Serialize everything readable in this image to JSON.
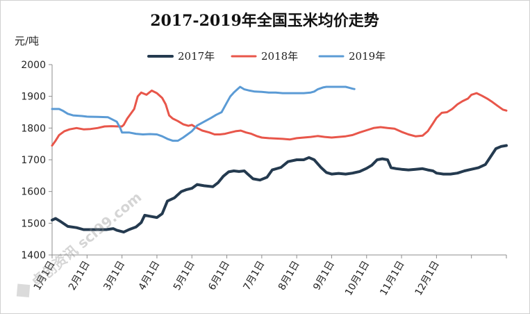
{
  "chart_data": {
    "type": "line",
    "title": "2017-2019年全国玉米均价走势",
    "ylabel": "元/吨",
    "xlabel": "",
    "ylim": [
      1400,
      2000
    ],
    "yticks": [
      1400,
      1500,
      1600,
      1700,
      1800,
      1900,
      2000
    ],
    "grid": false,
    "legend_position": "top",
    "x_tick_labels": [
      "1月1日",
      "2月1日",
      "3月1日",
      "4月1日",
      "5月1日",
      "6月1日",
      "7月1日",
      "8月1日",
      "9月1日",
      "10月1日",
      "11月1日",
      "12月1日"
    ],
    "x_unit": "month (1 = Jan 1)",
    "series": [
      {
        "name": "2017年",
        "color": "#243a4f",
        "points": [
          [
            1.0,
            1510
          ],
          [
            1.1,
            1515
          ],
          [
            1.25,
            1505
          ],
          [
            1.45,
            1490
          ],
          [
            1.7,
            1486
          ],
          [
            1.9,
            1480
          ],
          [
            2.1,
            1480
          ],
          [
            2.35,
            1480
          ],
          [
            2.55,
            1480
          ],
          [
            2.75,
            1483
          ],
          [
            2.85,
            1478
          ],
          [
            3.05,
            1472
          ],
          [
            3.2,
            1480
          ],
          [
            3.4,
            1488
          ],
          [
            3.55,
            1502
          ],
          [
            3.65,
            1525
          ],
          [
            3.8,
            1522
          ],
          [
            4.0,
            1518
          ],
          [
            4.15,
            1530
          ],
          [
            4.3,
            1570
          ],
          [
            4.5,
            1580
          ],
          [
            4.7,
            1600
          ],
          [
            4.85,
            1606
          ],
          [
            5.0,
            1610
          ],
          [
            5.15,
            1622
          ],
          [
            5.35,
            1618
          ],
          [
            5.6,
            1615
          ],
          [
            5.75,
            1628
          ],
          [
            5.9,
            1648
          ],
          [
            6.05,
            1662
          ],
          [
            6.2,
            1665
          ],
          [
            6.35,
            1663
          ],
          [
            6.5,
            1665
          ],
          [
            6.6,
            1655
          ],
          [
            6.75,
            1640
          ],
          [
            6.95,
            1636
          ],
          [
            7.15,
            1645
          ],
          [
            7.3,
            1668
          ],
          [
            7.55,
            1676
          ],
          [
            7.75,
            1694
          ],
          [
            8.0,
            1700
          ],
          [
            8.2,
            1700
          ],
          [
            8.35,
            1707
          ],
          [
            8.5,
            1700
          ],
          [
            8.7,
            1675
          ],
          [
            8.85,
            1660
          ],
          [
            9.0,
            1655
          ],
          [
            9.2,
            1657
          ],
          [
            9.4,
            1655
          ],
          [
            9.6,
            1658
          ],
          [
            9.8,
            1663
          ],
          [
            10.0,
            1673
          ],
          [
            10.15,
            1683
          ],
          [
            10.3,
            1700
          ],
          [
            10.45,
            1703
          ],
          [
            10.6,
            1700
          ],
          [
            10.7,
            1675
          ],
          [
            10.85,
            1672
          ],
          [
            11.0,
            1670
          ],
          [
            11.2,
            1668
          ],
          [
            11.4,
            1670
          ],
          [
            11.6,
            1672
          ],
          [
            11.75,
            1668
          ],
          [
            11.9,
            1665
          ],
          [
            12.0,
            1658
          ],
          [
            12.2,
            1655
          ],
          [
            12.4,
            1655
          ],
          [
            12.6,
            1658
          ],
          [
            12.8,
            1665
          ],
          [
            13.0,
            1670
          ],
          [
            13.2,
            1675
          ],
          [
            13.4,
            1685
          ],
          [
            13.55,
            1710
          ],
          [
            13.7,
            1735
          ],
          [
            13.85,
            1742
          ],
          [
            14.0,
            1745
          ]
        ]
      },
      {
        "name": "2018年",
        "color": "#e8564a",
        "points": [
          [
            1.0,
            1745
          ],
          [
            1.1,
            1760
          ],
          [
            1.2,
            1778
          ],
          [
            1.35,
            1790
          ],
          [
            1.5,
            1796
          ],
          [
            1.7,
            1800
          ],
          [
            1.9,
            1796
          ],
          [
            2.1,
            1797
          ],
          [
            2.3,
            1800
          ],
          [
            2.5,
            1805
          ],
          [
            2.7,
            1806
          ],
          [
            2.9,
            1805
          ],
          [
            3.0,
            1805
          ],
          [
            3.05,
            1810
          ],
          [
            3.15,
            1830
          ],
          [
            3.35,
            1860
          ],
          [
            3.45,
            1900
          ],
          [
            3.55,
            1912
          ],
          [
            3.7,
            1905
          ],
          [
            3.85,
            1918
          ],
          [
            4.0,
            1910
          ],
          [
            4.15,
            1895
          ],
          [
            4.25,
            1875
          ],
          [
            4.35,
            1840
          ],
          [
            4.45,
            1830
          ],
          [
            4.6,
            1822
          ],
          [
            4.75,
            1812
          ],
          [
            4.9,
            1807
          ],
          [
            5.0,
            1810
          ],
          [
            5.15,
            1800
          ],
          [
            5.3,
            1792
          ],
          [
            5.5,
            1786
          ],
          [
            5.65,
            1780
          ],
          [
            5.8,
            1780
          ],
          [
            5.95,
            1782
          ],
          [
            6.1,
            1786
          ],
          [
            6.25,
            1790
          ],
          [
            6.4,
            1792
          ],
          [
            6.55,
            1786
          ],
          [
            6.7,
            1782
          ],
          [
            6.85,
            1775
          ],
          [
            7.0,
            1770
          ],
          [
            7.2,
            1768
          ],
          [
            7.4,
            1767
          ],
          [
            7.6,
            1766
          ],
          [
            7.8,
            1764
          ],
          [
            8.0,
            1768
          ],
          [
            8.2,
            1770
          ],
          [
            8.4,
            1772
          ],
          [
            8.6,
            1775
          ],
          [
            8.8,
            1772
          ],
          [
            9.0,
            1770
          ],
          [
            9.2,
            1772
          ],
          [
            9.4,
            1774
          ],
          [
            9.6,
            1778
          ],
          [
            9.8,
            1786
          ],
          [
            10.0,
            1793
          ],
          [
            10.2,
            1800
          ],
          [
            10.4,
            1803
          ],
          [
            10.6,
            1800
          ],
          [
            10.8,
            1798
          ],
          [
            11.0,
            1788
          ],
          [
            11.2,
            1780
          ],
          [
            11.4,
            1774
          ],
          [
            11.6,
            1776
          ],
          [
            11.75,
            1790
          ],
          [
            11.9,
            1815
          ],
          [
            12.0,
            1832
          ],
          [
            12.15,
            1848
          ],
          [
            12.3,
            1850
          ],
          [
            12.45,
            1860
          ],
          [
            12.6,
            1875
          ],
          [
            12.75,
            1885
          ],
          [
            12.9,
            1893
          ],
          [
            13.0,
            1905
          ],
          [
            13.15,
            1910
          ],
          [
            13.3,
            1902
          ],
          [
            13.45,
            1893
          ],
          [
            13.6,
            1882
          ],
          [
            13.75,
            1870
          ],
          [
            13.9,
            1858
          ],
          [
            14.0,
            1855
          ]
        ]
      },
      {
        "name": "2019年",
        "color": "#5b9bd5",
        "points": [
          [
            1.0,
            1860
          ],
          [
            1.2,
            1860
          ],
          [
            1.3,
            1855
          ],
          [
            1.45,
            1845
          ],
          [
            1.6,
            1840
          ],
          [
            1.85,
            1838
          ],
          [
            2.0,
            1836
          ],
          [
            2.3,
            1835
          ],
          [
            2.6,
            1834
          ],
          [
            2.85,
            1820
          ],
          [
            2.95,
            1800
          ],
          [
            3.0,
            1786
          ],
          [
            3.2,
            1786
          ],
          [
            3.4,
            1782
          ],
          [
            3.6,
            1780
          ],
          [
            3.8,
            1781
          ],
          [
            4.0,
            1780
          ],
          [
            4.15,
            1774
          ],
          [
            4.3,
            1766
          ],
          [
            4.45,
            1760
          ],
          [
            4.6,
            1760
          ],
          [
            4.75,
            1770
          ],
          [
            4.85,
            1778
          ],
          [
            5.0,
            1790
          ],
          [
            5.15,
            1808
          ],
          [
            5.35,
            1820
          ],
          [
            5.55,
            1832
          ],
          [
            5.7,
            1842
          ],
          [
            5.85,
            1850
          ],
          [
            6.0,
            1880
          ],
          [
            6.1,
            1900
          ],
          [
            6.2,
            1912
          ],
          [
            6.3,
            1922
          ],
          [
            6.38,
            1930
          ],
          [
            6.5,
            1922
          ],
          [
            6.65,
            1918
          ],
          [
            6.8,
            1915
          ],
          [
            7.0,
            1914
          ],
          [
            7.2,
            1912
          ],
          [
            7.4,
            1912
          ],
          [
            7.6,
            1910
          ],
          [
            7.8,
            1910
          ],
          [
            8.0,
            1910
          ],
          [
            8.2,
            1910
          ],
          [
            8.4,
            1912
          ],
          [
            8.5,
            1915
          ],
          [
            8.6,
            1922
          ],
          [
            8.75,
            1928
          ],
          [
            8.85,
            1930
          ],
          [
            9.0,
            1930
          ],
          [
            9.2,
            1930
          ],
          [
            9.4,
            1930
          ],
          [
            9.5,
            1927
          ],
          [
            9.6,
            1924
          ],
          [
            9.65,
            1923
          ]
        ]
      }
    ]
  },
  "watermark": "卓创资讯 sci99.com"
}
